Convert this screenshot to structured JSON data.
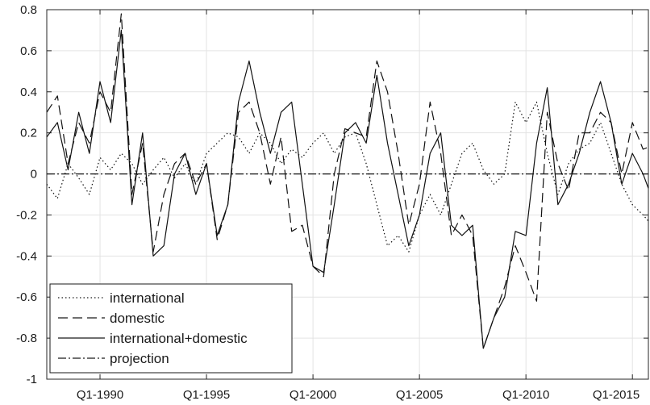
{
  "chart_data": {
    "type": "line",
    "title": "",
    "xlabel": "",
    "ylabel": "",
    "xlim": [
      1987.5,
      2015.75
    ],
    "ylim": [
      -1,
      0.8
    ],
    "y_ticks": [
      0.8,
      0.6,
      0.4,
      0.2,
      0,
      -0.2,
      -0.4,
      -0.6,
      -0.8,
      -1
    ],
    "y_tick_labels": [
      "0.8",
      "0.6",
      "0.4",
      "0.2",
      "0",
      "-0.2",
      "-0.4",
      "-0.6",
      "-0.8",
      "-1"
    ],
    "x_ticks": [
      1990,
      1995,
      2000,
      2005,
      2010,
      2015
    ],
    "x_tick_labels": [
      "Q1-1990",
      "Q1-1995",
      "Q1-2000",
      "Q1-2005",
      "Q1-2010",
      "Q1-2015"
    ],
    "grid": true,
    "legend_position": "bottom-left",
    "series": [
      {
        "name": "international",
        "style": "dotted",
        "x": [
          1987.5,
          1988.0,
          1988.5,
          1989.0,
          1989.5,
          1990.0,
          1990.5,
          1991.0,
          1991.5,
          1992.0,
          1992.5,
          1993.0,
          1993.5,
          1994.0,
          1994.5,
          1995.0,
          1995.5,
          1996.0,
          1996.5,
          1997.0,
          1997.5,
          1998.0,
          1998.5,
          1999.0,
          1999.5,
          2000.0,
          2000.5,
          2001.0,
          2001.5,
          2002.0,
          2002.5,
          2003.0,
          2003.5,
          2004.0,
          2004.5,
          2005.0,
          2005.5,
          2006.0,
          2006.5,
          2007.0,
          2007.5,
          2008.0,
          2008.5,
          2009.0,
          2009.5,
          2010.0,
          2010.5,
          2011.0,
          2011.5,
          2012.0,
          2012.5,
          2013.0,
          2013.5,
          2014.0,
          2014.5,
          2015.0,
          2015.5,
          2015.75
        ],
        "y": [
          -0.05,
          -0.12,
          0.05,
          -0.02,
          -0.1,
          0.08,
          0.02,
          0.1,
          0.05,
          -0.05,
          0.02,
          0.08,
          -0.02,
          0.05,
          -0.05,
          0.1,
          0.15,
          0.2,
          0.18,
          0.1,
          0.2,
          0.15,
          0.05,
          0.12,
          0.08,
          0.15,
          0.2,
          0.1,
          0.18,
          0.2,
          0.05,
          -0.15,
          -0.35,
          -0.3,
          -0.38,
          -0.2,
          -0.1,
          -0.2,
          -0.05,
          0.1,
          0.15,
          0.02,
          -0.05,
          0.0,
          0.35,
          0.25,
          0.35,
          0.1,
          -0.1,
          0.05,
          0.12,
          0.15,
          0.25,
          0.1,
          -0.05,
          -0.15,
          -0.2,
          -0.23
        ]
      },
      {
        "name": "domestic",
        "style": "dashed",
        "x": [
          1987.5,
          1988.0,
          1988.5,
          1989.0,
          1989.5,
          1990.0,
          1990.5,
          1991.0,
          1991.5,
          1992.0,
          1992.5,
          1993.0,
          1993.5,
          1994.0,
          1994.5,
          1995.0,
          1995.5,
          1996.0,
          1996.5,
          1997.0,
          1997.5,
          1998.0,
          1998.5,
          1999.0,
          1999.5,
          2000.0,
          2000.5,
          2001.0,
          2001.5,
          2002.0,
          2002.5,
          2003.0,
          2003.5,
          2004.0,
          2004.5,
          2005.0,
          2005.5,
          2006.0,
          2006.5,
          2007.0,
          2007.5,
          2008.0,
          2008.5,
          2009.0,
          2009.5,
          2010.0,
          2010.5,
          2011.0,
          2011.5,
          2012.0,
          2012.5,
          2013.0,
          2013.5,
          2014.0,
          2014.5,
          2015.0,
          2015.5,
          2015.75
        ],
        "y": [
          0.3,
          0.38,
          0.05,
          0.25,
          0.15,
          0.4,
          0.3,
          0.78,
          -0.1,
          0.15,
          -0.38,
          -0.1,
          0.05,
          0.1,
          -0.05,
          0.05,
          -0.32,
          -0.15,
          0.3,
          0.35,
          0.2,
          -0.05,
          0.18,
          -0.28,
          -0.25,
          -0.45,
          -0.5,
          0.0,
          0.22,
          0.2,
          0.18,
          0.55,
          0.4,
          0.1,
          -0.25,
          -0.05,
          0.35,
          0.1,
          -0.3,
          -0.2,
          -0.3,
          -0.85,
          -0.7,
          -0.55,
          -0.35,
          -0.48,
          -0.62,
          0.3,
          0.05,
          -0.08,
          0.2,
          0.2,
          0.3,
          0.25,
          0.0,
          0.25,
          0.12,
          0.13
        ]
      },
      {
        "name": "international+domestic",
        "style": "solid",
        "x": [
          1987.5,
          1988.0,
          1988.5,
          1989.0,
          1989.5,
          1990.0,
          1990.5,
          1991.0,
          1991.5,
          1992.0,
          1992.5,
          1993.0,
          1993.5,
          1994.0,
          1994.5,
          1995.0,
          1995.5,
          1996.0,
          1996.5,
          1997.0,
          1997.5,
          1998.0,
          1998.5,
          1999.0,
          1999.5,
          2000.0,
          2000.5,
          2001.0,
          2001.5,
          2002.0,
          2002.5,
          2003.0,
          2003.5,
          2004.0,
          2004.5,
          2005.0,
          2005.5,
          2006.0,
          2006.5,
          2007.0,
          2007.5,
          2008.0,
          2008.5,
          2009.0,
          2009.5,
          2010.0,
          2010.5,
          2011.0,
          2011.5,
          2012.0,
          2012.5,
          2013.0,
          2013.5,
          2014.0,
          2014.5,
          2015.0,
          2015.5,
          2015.75
        ],
        "y": [
          0.18,
          0.25,
          0.02,
          0.3,
          0.1,
          0.45,
          0.25,
          0.7,
          -0.15,
          0.2,
          -0.4,
          -0.35,
          0.0,
          0.1,
          -0.1,
          0.05,
          -0.3,
          -0.15,
          0.35,
          0.55,
          0.3,
          0.1,
          0.3,
          0.35,
          -0.05,
          -0.45,
          -0.48,
          -0.15,
          0.2,
          0.25,
          0.15,
          0.48,
          0.15,
          -0.1,
          -0.35,
          -0.2,
          0.1,
          0.2,
          -0.25,
          -0.3,
          -0.25,
          -0.85,
          -0.7,
          -0.6,
          -0.28,
          -0.3,
          0.15,
          0.42,
          -0.15,
          -0.05,
          0.1,
          0.3,
          0.45,
          0.25,
          -0.05,
          0.1,
          0.0,
          -0.07
        ]
      },
      {
        "name": "projection",
        "style": "dashdot",
        "x": [
          1987.5,
          2015.75
        ],
        "y": [
          0,
          0
        ]
      }
    ]
  }
}
